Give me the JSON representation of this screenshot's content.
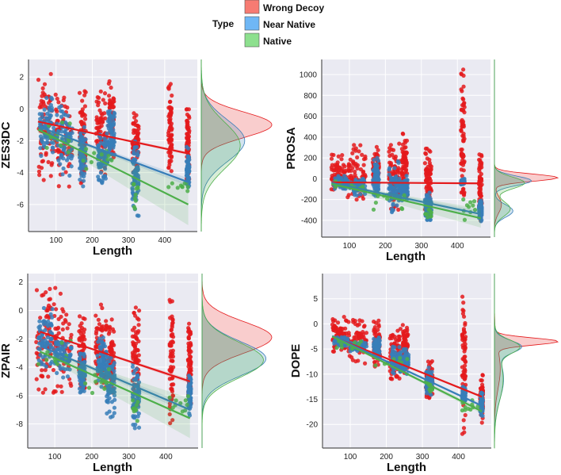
{
  "legend": {
    "title": "Type",
    "entries": [
      {
        "label": "Wrong Decoy",
        "color": "#f77b72"
      },
      {
        "label": "Near Native",
        "color": "#6fb7f5"
      },
      {
        "label": "Native",
        "color": "#8de08e"
      }
    ]
  },
  "chart_data": [
    {
      "type": "scatter",
      "title": "",
      "xlabel": "Length",
      "ylabel": "ZES3DC",
      "xlim": [
        24,
        490
      ],
      "ylim": [
        -7.7,
        3.1
      ],
      "xticks": [
        100,
        200,
        300,
        400
      ],
      "yticks": [
        2,
        0,
        -2,
        -4,
        -6
      ],
      "series": [
        {
          "name": "Wrong Decoy",
          "color": "#e41a1c",
          "clusters": [
            [
              50,
              90,
              -4.5,
              2.4
            ],
            [
              95,
              145,
              -4.9,
              1.4
            ],
            [
              165,
              182,
              -4.8,
              1.3
            ],
            [
              210,
              240,
              -4.5,
              1.2
            ],
            [
              245,
              260,
              -3.3,
              1.9
            ],
            [
              310,
              328,
              -4.0,
              0.3
            ],
            [
              410,
              420,
              -4.4,
              1.6
            ],
            [
              460,
              468,
              -4.5,
              0.0
            ]
          ],
          "fit": [
            [
              50,
              -0.8
            ],
            [
              465,
              -2.8
            ]
          ],
          "ci": 0.1,
          "density": [
            [
              -1.0,
              0.8,
              1.0
            ]
          ]
        },
        {
          "name": "Near Native",
          "color": "#377eb8",
          "clusters": [
            [
              55,
              95,
              -3.5,
              1.1
            ],
            [
              100,
              145,
              -4.5,
              0.2
            ],
            [
              165,
              182,
              -4.9,
              -1.0
            ],
            [
              215,
              240,
              -4.9,
              -1.5
            ],
            [
              240,
              262,
              -3.4,
              0.3
            ],
            [
              310,
              328,
              -6.8,
              -1.8
            ],
            [
              460,
              468,
              -5.2,
              -2.2
            ]
          ],
          "fit": [
            [
              50,
              -1.1
            ],
            [
              465,
              -4.6
            ]
          ],
          "ci": 0.25,
          "density": [
            [
              -2.0,
              1.3,
              1.0
            ]
          ]
        },
        {
          "name": "Native",
          "color": "#4daf4a",
          "clusters": [
            [
              55,
              145,
              -3.5,
              -0.6
            ],
            [
              165,
              260,
              -4.0,
              -1.6
            ],
            [
              310,
              328,
              -6.3,
              -4.2
            ],
            [
              410,
              468,
              -5.6,
              -3.8
            ]
          ],
          "fit": [
            [
              50,
              -1.3
            ],
            [
              465,
              -6.0
            ]
          ],
          "ci": 1.3,
          "density": [
            [
              -2.3,
              1.45,
              1.0
            ]
          ]
        }
      ]
    },
    {
      "type": "scatter",
      "title": "",
      "xlabel": "Length",
      "ylabel": "PROSA",
      "xlim": [
        23,
        492
      ],
      "ylim": [
        -561,
        1145
      ],
      "xticks": [
        100,
        200,
        300,
        400
      ],
      "yticks": [
        1000,
        800,
        600,
        400,
        200,
        0,
        -200,
        -400
      ],
      "series": [
        {
          "name": "Wrong Decoy",
          "color": "#e41a1c",
          "clusters": [
            [
              50,
              90,
              -130,
              240
            ],
            [
              95,
              145,
              -220,
              330
            ],
            [
              165,
              182,
              -160,
              390
            ],
            [
              210,
              240,
              -360,
              370
            ],
            [
              245,
              260,
              -220,
              440
            ],
            [
              310,
              328,
              -300,
              290
            ],
            [
              410,
              420,
              -160,
              1050
            ],
            [
              460,
              468,
              -420,
              260
            ]
          ],
          "fit": [
            [
              50,
              -35
            ],
            [
              465,
              -45
            ]
          ],
          "ci": 10,
          "density": [
            [
              10,
              35,
              0.8
            ],
            [
              -250,
              80,
              0.2
            ]
          ]
        },
        {
          "name": "Near Native",
          "color": "#377eb8",
          "clusters": [
            [
              55,
              95,
              -100,
              30
            ],
            [
              100,
              145,
              -160,
              10
            ],
            [
              165,
              182,
              -170,
              200
            ],
            [
              210,
              240,
              -330,
              170
            ],
            [
              240,
              262,
              -210,
              30
            ],
            [
              310,
              328,
              -410,
              -110
            ],
            [
              410,
              420,
              -60,
              0
            ],
            [
              460,
              468,
              -420,
              -210
            ]
          ],
          "fit": [
            [
              50,
              -40
            ],
            [
              465,
              -340
            ]
          ],
          "ci": 30,
          "density": [
            [
              -20,
              45,
              0.6
            ],
            [
              -310,
              60,
              0.4
            ]
          ]
        },
        {
          "name": "Native",
          "color": "#4daf4a",
          "clusters": [
            [
              55,
              145,
              -130,
              -20
            ],
            [
              165,
              260,
              -380,
              -60
            ],
            [
              310,
              328,
              -380,
              -280
            ],
            [
              410,
              468,
              -420,
              -120
            ]
          ],
          "fit": [
            [
              50,
              -50
            ],
            [
              465,
              -380
            ]
          ],
          "ci": 90,
          "density": [
            [
              -40,
              55,
              0.6
            ],
            [
              -290,
              70,
              0.4
            ]
          ]
        }
      ]
    },
    {
      "type": "scatter",
      "title": "",
      "xlabel": "Length",
      "ylabel": "ZPAIR",
      "xlim": [
        27,
        487
      ],
      "ylim": [
        -9.7,
        2.6
      ],
      "xticks": [
        100,
        200,
        300,
        400
      ],
      "yticks": [
        2,
        0,
        -2,
        -4,
        -6,
        -8
      ],
      "series": [
        {
          "name": "Wrong Decoy",
          "color": "#e41a1c",
          "clusters": [
            [
              50,
              90,
              -5.8,
              2.0
            ],
            [
              95,
              145,
              -6.5,
              1.7
            ],
            [
              165,
              182,
              -6.2,
              0.3
            ],
            [
              210,
              240,
              -5.6,
              0.8
            ],
            [
              245,
              260,
              -6.3,
              -0.6
            ],
            [
              310,
              328,
              -7.6,
              0.5
            ],
            [
              410,
              420,
              -8.3,
              0.8
            ],
            [
              460,
              468,
              -6.7,
              -0.1
            ]
          ],
          "fit": [
            [
              60,
              -1.5
            ],
            [
              465,
              -5.0
            ]
          ],
          "ci": 0.15,
          "density": [
            [
              -1.9,
              1.1,
              1.0
            ]
          ]
        },
        {
          "name": "Near Native",
          "color": "#377eb8",
          "clusters": [
            [
              55,
              95,
              -4.3,
              0.3
            ],
            [
              100,
              145,
              -4.9,
              -1.8
            ],
            [
              165,
              182,
              -5.8,
              -3.0
            ],
            [
              215,
              240,
              -5.5,
              -1.8
            ],
            [
              240,
              262,
              -7.6,
              -3.0
            ],
            [
              310,
              328,
              -8.3,
              -3.6
            ],
            [
              460,
              468,
              -7.4,
              -4.3
            ]
          ],
          "fit": [
            [
              60,
              -2.5
            ],
            [
              465,
              -7.0
            ]
          ],
          "ci": 0.3,
          "density": [
            [
              -3.4,
              1.2,
              1.0
            ]
          ]
        },
        {
          "name": "Native",
          "color": "#4daf4a",
          "clusters": [
            [
              55,
              145,
              -4.8,
              -2.0
            ],
            [
              165,
              260,
              -6.5,
              -4.0
            ],
            [
              310,
              328,
              -7.8,
              -6.0
            ],
            [
              410,
              468,
              -7.2,
              -5.8
            ]
          ],
          "fit": [
            [
              60,
              -2.9
            ],
            [
              465,
              -7.6
            ]
          ],
          "ci": 1.4,
          "density": [
            [
              -3.5,
              1.25,
              1.0
            ]
          ]
        }
      ]
    },
    {
      "type": "scatter",
      "title": "",
      "xlabel": "Length",
      "ylabel": "DOPE",
      "xlim": [
        23,
        491
      ],
      "ylim": [
        -24.7,
        10
      ],
      "xticks": [
        100,
        200,
        300,
        400
      ],
      "yticks": [
        5,
        0,
        -5,
        -10,
        -15,
        -20
      ],
      "series": [
        {
          "name": "Wrong Decoy",
          "color": "#e41a1c",
          "clusters": [
            [
              50,
              90,
              -5.5,
              1.5
            ],
            [
              95,
              145,
              -8.7,
              1.7
            ],
            [
              165,
              182,
              -8.7,
              1.0
            ],
            [
              210,
              240,
              -13.3,
              0.4
            ],
            [
              245,
              260,
              -10,
              1.1
            ],
            [
              310,
              328,
              -15,
              -7.3
            ],
            [
              410,
              420,
              -23,
              8.2
            ],
            [
              460,
              468,
              -20,
              -10
            ]
          ],
          "fit": [
            [
              50,
              -2.5
            ],
            [
              465,
              -14.5
            ]
          ],
          "ci": 0.2,
          "density": [
            [
              -3.5,
              0.7,
              0.65
            ],
            [
              -9,
              4,
              0.35
            ]
          ]
        },
        {
          "name": "Near Native",
          "color": "#377eb8",
          "clusters": [
            [
              55,
              95,
              -4.5,
              -2.5
            ],
            [
              100,
              145,
              -5.5,
              -3.5
            ],
            [
              165,
              182,
              -6.5,
              -2.5
            ],
            [
              215,
              240,
              -10,
              -4.5
            ],
            [
              240,
              262,
              -10,
              -5
            ],
            [
              310,
              328,
              -14.5,
              -8.5
            ],
            [
              410,
              420,
              -15.5,
              -12.5
            ],
            [
              460,
              468,
              -18.5,
              -13
            ]
          ],
          "fit": [
            [
              50,
              -2.4
            ],
            [
              465,
              -16.3
            ]
          ],
          "ci": 0.3,
          "density": [
            [
              -4.5,
              1.2,
              0.45
            ],
            [
              -11,
              4,
              0.55
            ]
          ]
        },
        {
          "name": "Native",
          "color": "#4daf4a",
          "clusters": [
            [
              55,
              145,
              -5.5,
              -2.5
            ],
            [
              165,
              260,
              -9.5,
              -6
            ],
            [
              310,
              328,
              -13.7,
              -11
            ],
            [
              410,
              468,
              -18.2,
              -14
            ]
          ],
          "fit": [
            [
              50,
              -2.5
            ],
            [
              465,
              -17.4
            ]
          ],
          "ci": 0.5,
          "density": [
            [
              -4.5,
              1.3,
              0.45
            ],
            [
              -11,
              4.2,
              0.55
            ]
          ]
        }
      ]
    }
  ]
}
